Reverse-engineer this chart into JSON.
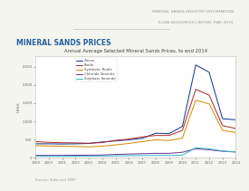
{
  "title": "Annual Average Selected Mineral Sands Prices, to end 2014",
  "page_title": "MINERAL SANDS PRICES",
  "header_line1": "MINERAL SANDS INDUSTRY INFORMATION",
  "header_line2": "ILUKA RESOURCES LIMITED, MAY 2015",
  "ylabel": "US$/t",
  "source": "Source: Iluka and TZMI",
  "years": [
    1999,
    2000,
    2001,
    2002,
    2003,
    2004,
    2005,
    2006,
    2007,
    2008,
    2009,
    2010,
    2011,
    2012,
    2013,
    2014
  ],
  "series": {
    "Zircon": {
      "color": "#1a3f8f",
      "values": [
        380,
        380,
        375,
        380,
        390,
        430,
        460,
        490,
        530,
        670,
        660,
        860,
        2550,
        2350,
        1070,
        1040
      ]
    },
    "Rutile": {
      "color": "#b03030",
      "values": [
        440,
        420,
        410,
        405,
        395,
        415,
        475,
        510,
        570,
        610,
        610,
        750,
        1880,
        1720,
        880,
        800
      ]
    },
    "Synthetic Rutile": {
      "color": "#d4900a",
      "values": [
        330,
        320,
        315,
        305,
        298,
        315,
        350,
        390,
        440,
        490,
        470,
        540,
        1580,
        1480,
        750,
        690
      ]
    },
    "Chloride Ilmenite": {
      "color": "#6a3d9a",
      "values": [
        62,
        62,
        62,
        65,
        68,
        72,
        88,
        98,
        108,
        118,
        118,
        148,
        245,
        215,
        175,
        155
      ]
    },
    "Sulphate Ilmenite": {
      "color": "#40b8c8",
      "values": [
        38,
        38,
        38,
        40,
        42,
        44,
        48,
        52,
        58,
        62,
        62,
        68,
        270,
        242,
        185,
        155
      ]
    }
  },
  "ylim": [
    0,
    2800
  ],
  "yticks": [
    0,
    500,
    1000,
    1500,
    2000,
    2500
  ],
  "bg_color": "#f5f5ef",
  "plot_bg": "#ffffff",
  "header_text_color": "#999999",
  "page_title_color": "#2060a0",
  "title_color": "#444444",
  "source_color": "#999999",
  "spine_color": "#bbbbbb",
  "tick_color": "#666666"
}
